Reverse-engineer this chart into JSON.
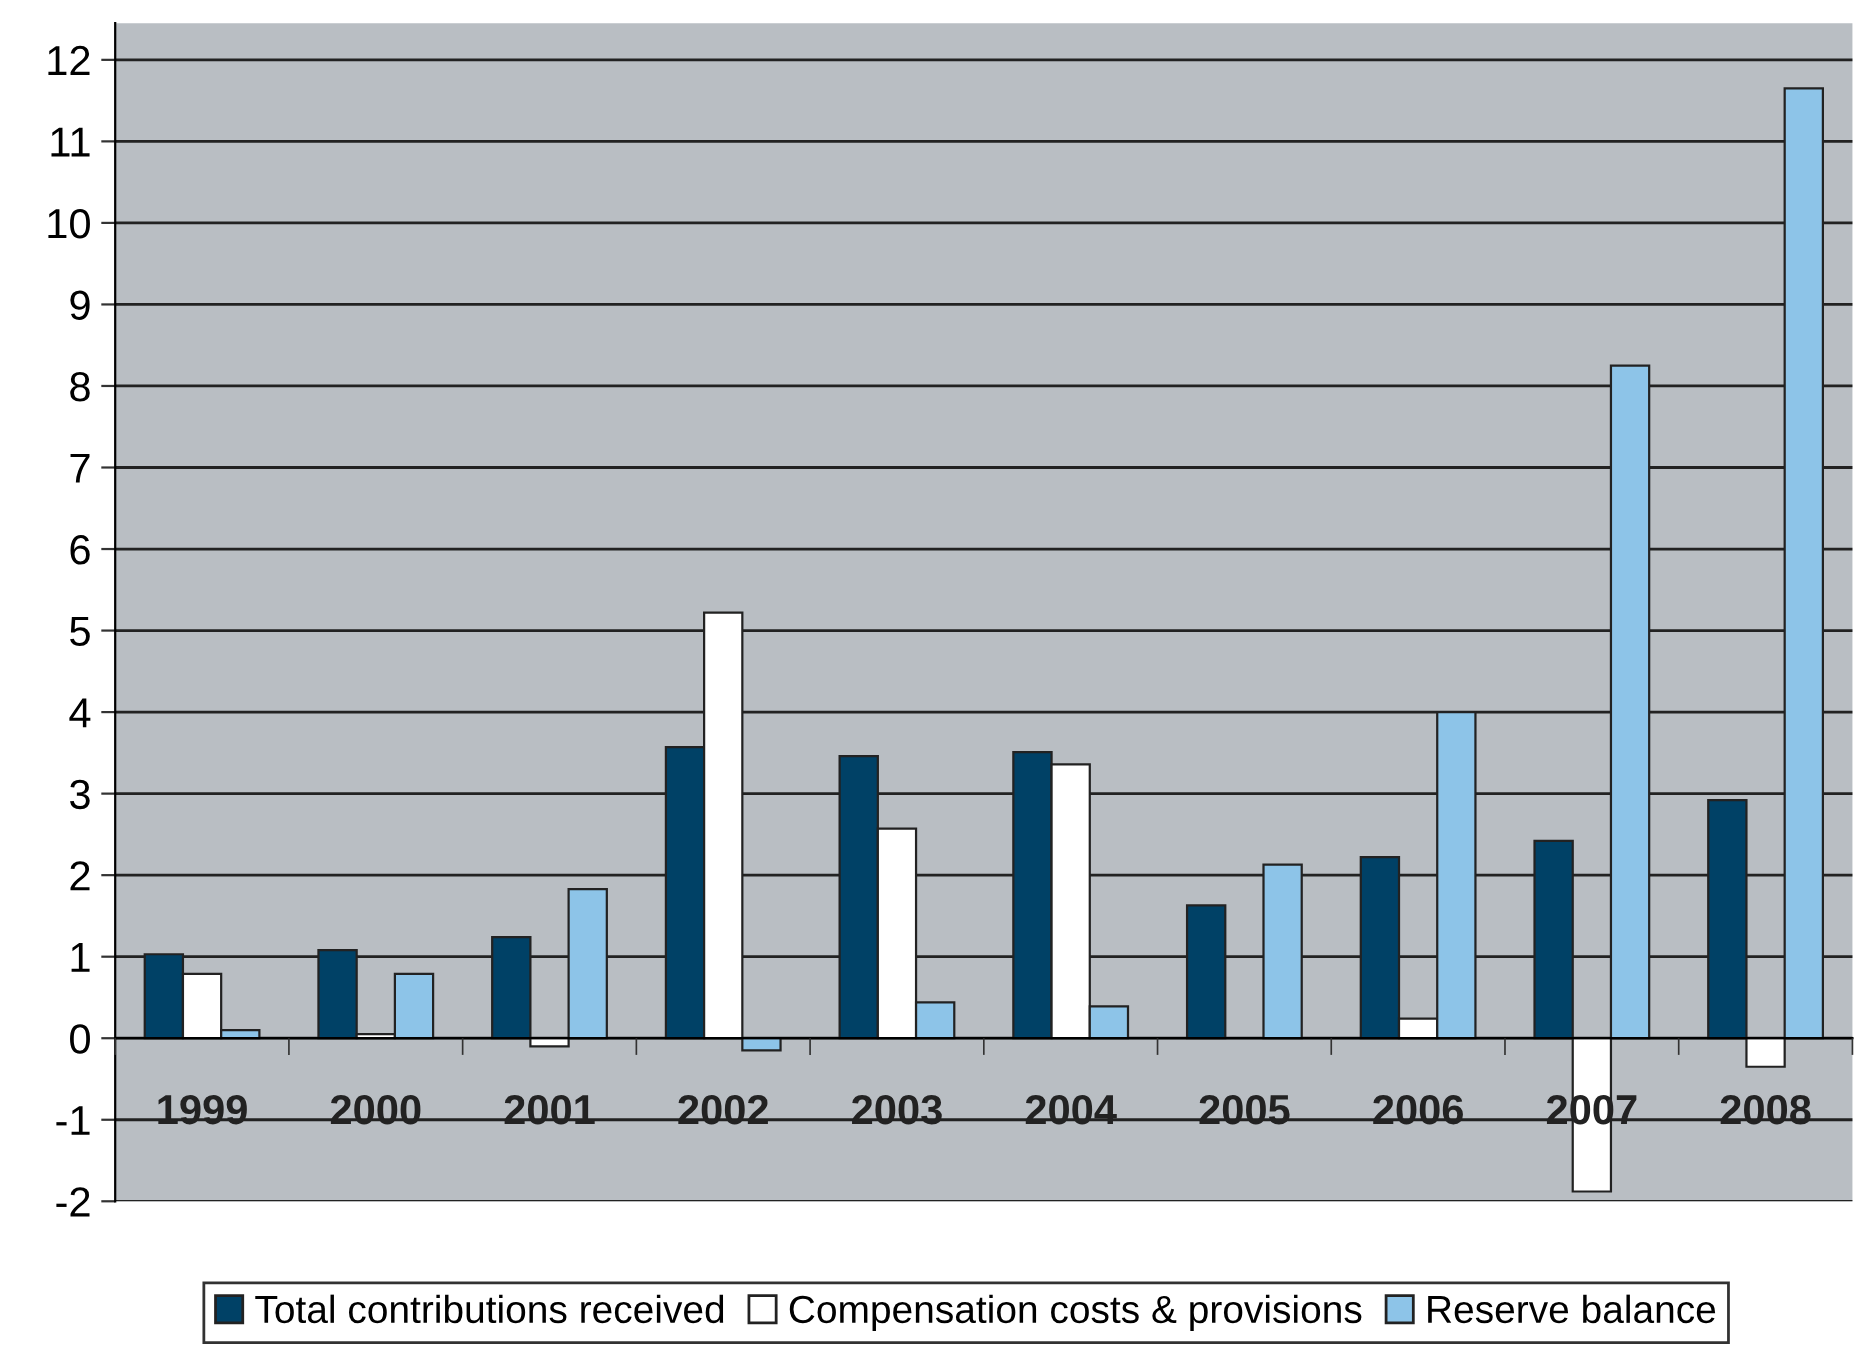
{
  "chart_data": {
    "type": "bar",
    "categories": [
      "1999",
      "2000",
      "2001",
      "2002",
      "2003",
      "2004",
      "2005",
      "2006",
      "2007",
      "2008"
    ],
    "series": [
      {
        "name": "Total contributions received",
        "color": "#004166",
        "values": [
          1.03,
          1.08,
          1.24,
          3.57,
          3.46,
          3.51,
          1.63,
          2.22,
          2.42,
          2.92
        ]
      },
      {
        "name": "Compensation costs & provisions",
        "color": "#ffffff",
        "values": [
          0.79,
          0.05,
          -0.1,
          5.22,
          2.57,
          3.36,
          null,
          0.24,
          -1.88,
          -0.35
        ]
      },
      {
        "name": "Reserve balance",
        "color": "#8dc4e8",
        "values": [
          0.1,
          0.79,
          1.83,
          -0.15,
          0.44,
          0.39,
          2.13,
          4.0,
          8.25,
          11.65
        ]
      }
    ],
    "ylim": [
      -2,
      12.45
    ],
    "yticks": [
      -2,
      -1,
      0,
      1,
      2,
      3,
      4,
      5,
      6,
      7,
      8,
      9,
      10,
      11,
      12
    ],
    "grid": "y",
    "legend": "bottom"
  }
}
